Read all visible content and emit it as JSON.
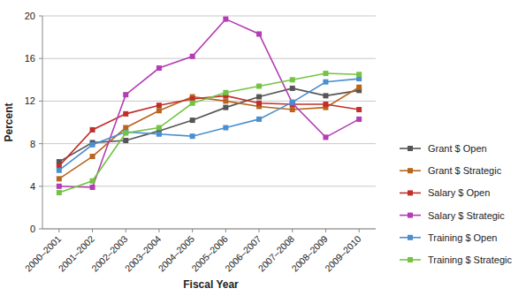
{
  "chart_data": {
    "type": "line",
    "x_label": "Fiscal Year",
    "y_label": "Percent",
    "categories": [
      "2000–2001",
      "2001–2002",
      "2002–2003",
      "2003–2004",
      "2004–2005",
      "2005–2006",
      "2006–2007",
      "2007–2008",
      "2008–2009",
      "2009–2010"
    ],
    "series": [
      {
        "name": "Grant $ Open",
        "color": "#555555",
        "marker": "square",
        "values": [
          6.3,
          8.1,
          8.3,
          9.2,
          10.2,
          11.4,
          12.4,
          13.2,
          12.5,
          13.0
        ]
      },
      {
        "name": "Grant $ Strategic",
        "color": "#b8651e",
        "marker": "square",
        "values": [
          4.7,
          6.8,
          9.5,
          11.1,
          12.4,
          12.0,
          11.5,
          11.2,
          11.4,
          13.3
        ]
      },
      {
        "name": "Salary $ Open",
        "color": "#c0302a",
        "marker": "square",
        "values": [
          5.9,
          9.3,
          10.8,
          11.6,
          12.2,
          12.5,
          11.8,
          11.7,
          11.7,
          11.2
        ]
      },
      {
        "name": "Salary $ Strategic",
        "color": "#b43cb4",
        "marker": "square",
        "values": [
          4.0,
          3.9,
          12.6,
          15.1,
          16.2,
          19.7,
          18.3,
          11.8,
          8.6,
          10.3
        ]
      },
      {
        "name": "Training $ Open",
        "color": "#4a8fcf",
        "marker": "square",
        "values": [
          5.5,
          7.9,
          9.1,
          8.9,
          8.7,
          9.5,
          10.3,
          11.9,
          13.8,
          14.1
        ]
      },
      {
        "name": "Training $ Strategic",
        "color": "#72c442",
        "marker": "square",
        "values": [
          3.4,
          4.5,
          9.0,
          9.5,
          11.8,
          12.8,
          13.4,
          14.0,
          14.6,
          14.5
        ]
      }
    ],
    "ylim": [
      0,
      20
    ],
    "yticks": [
      0,
      4,
      8,
      12,
      16,
      20
    ],
    "grid": true,
    "legend": "right"
  }
}
